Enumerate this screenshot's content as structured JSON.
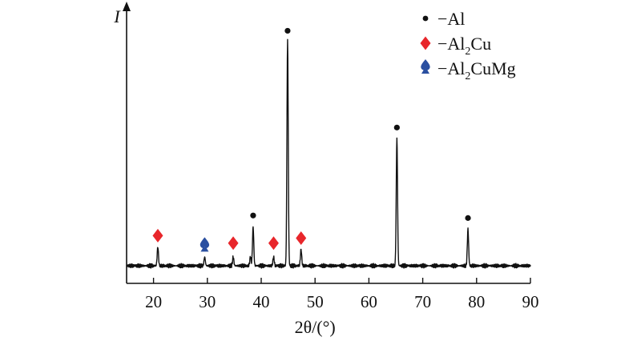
{
  "chart_data": {
    "type": "line",
    "title": "",
    "xlabel": "2θ/(°)",
    "ylabel": "I",
    "xlim": [
      15,
      90
    ],
    "ylim": [
      0,
      100
    ],
    "x_ticks": [
      20,
      30,
      40,
      50,
      60,
      70,
      80,
      90
    ],
    "y_ticks": [],
    "grid": false,
    "legend_position": "top-right",
    "legend": [
      {
        "marker": "circle",
        "color": "#111111",
        "prefix": "−Al",
        "sub": "",
        "suffix": ""
      },
      {
        "marker": "diamond",
        "color": "#e8262b",
        "prefix": "−Al",
        "sub": "2",
        "suffix": "Cu"
      },
      {
        "marker": "spade",
        "color": "#2a4fa0",
        "prefix": "−Al",
        "sub": "2",
        "suffix": "CuMg"
      }
    ],
    "series": [
      {
        "color": "#111111",
        "baseline": 7,
        "peaks": [
          {
            "x": 20.8,
            "y": 14.5
          },
          {
            "x": 29.5,
            "y": 10.5
          },
          {
            "x": 34.8,
            "y": 10.5
          },
          {
            "x": 38.0,
            "y": 10.5
          },
          {
            "x": 38.5,
            "y": 22.5
          },
          {
            "x": 42.3,
            "y": 10.5
          },
          {
            "x": 44.9,
            "y": 97
          },
          {
            "x": 47.4,
            "y": 13.5
          },
          {
            "x": 65.2,
            "y": 58
          },
          {
            "x": 78.4,
            "y": 21.5
          }
        ]
      }
    ],
    "peak_markers": [
      {
        "x": 20.8,
        "y": 19,
        "marker": "diamond",
        "color": "#e8262b"
      },
      {
        "x": 29.5,
        "y": 15.5,
        "marker": "spade",
        "color": "#2a4fa0"
      },
      {
        "x": 34.8,
        "y": 16,
        "marker": "diamond",
        "color": "#e8262b"
      },
      {
        "x": 38.5,
        "y": 27,
        "marker": "circle",
        "color": "#111111"
      },
      {
        "x": 42.3,
        "y": 16,
        "marker": "diamond",
        "color": "#e8262b"
      },
      {
        "x": 44.9,
        "y": 100.5,
        "marker": "circle",
        "color": "#111111"
      },
      {
        "x": 47.4,
        "y": 18,
        "marker": "diamond",
        "color": "#e8262b"
      },
      {
        "x": 65.2,
        "y": 62,
        "marker": "circle",
        "color": "#111111"
      },
      {
        "x": 78.4,
        "y": 26,
        "marker": "circle",
        "color": "#111111"
      }
    ]
  }
}
